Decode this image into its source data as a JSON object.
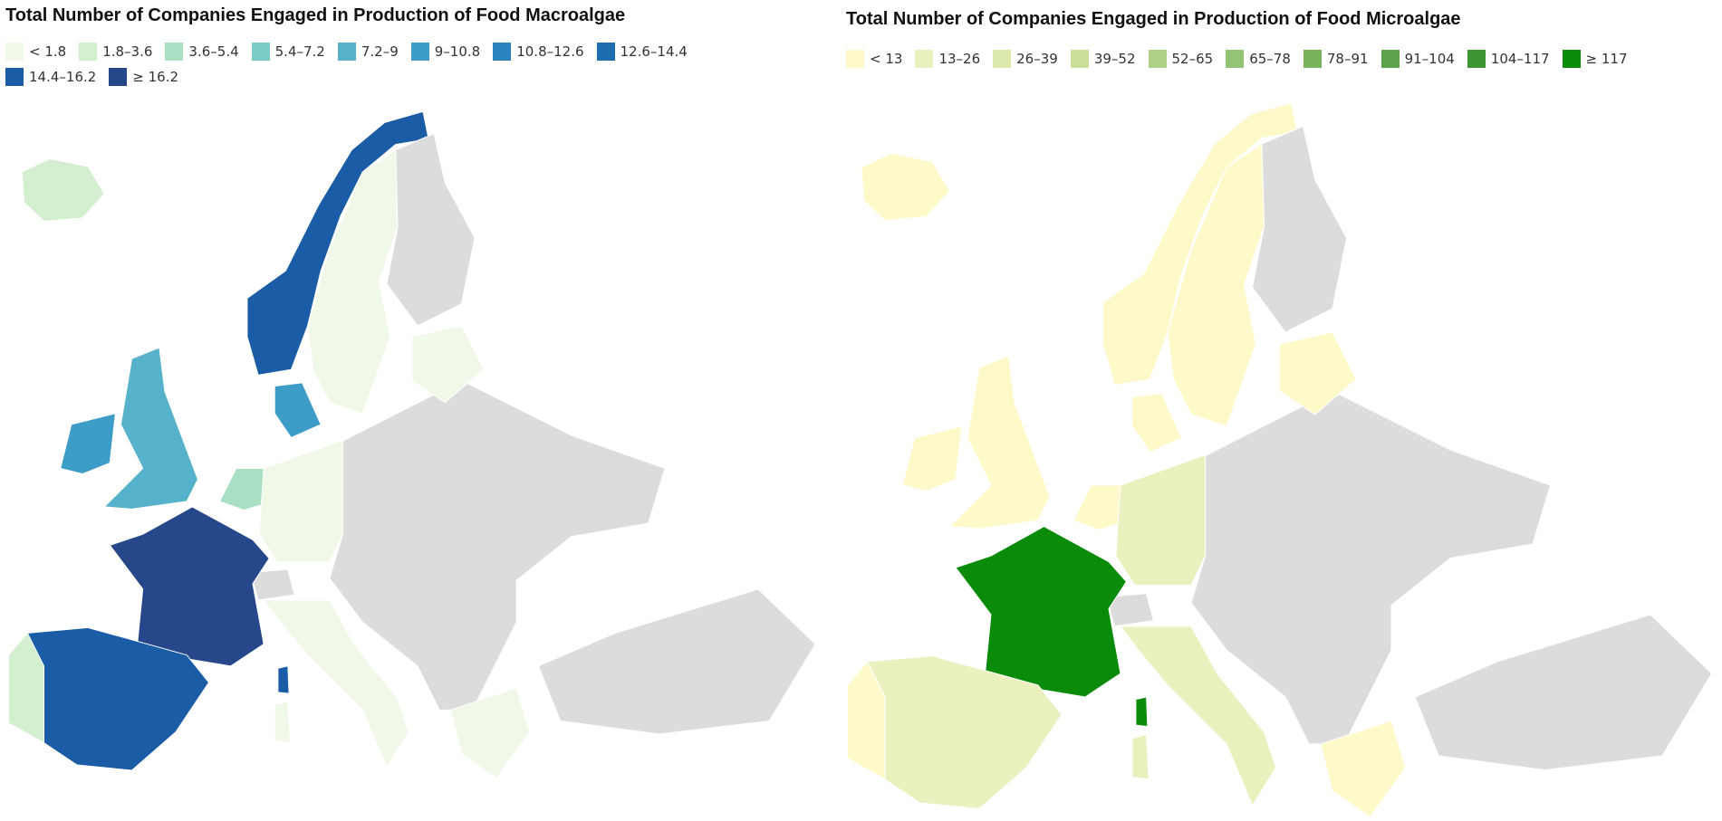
{
  "maps": [
    {
      "title": "Total Number of Companies Engaged in Production of Food Macroalgae",
      "legend": [
        {
          "label": "< 1.8",
          "color": "#f0f8e8"
        },
        {
          "label": "1.8–3.6",
          "color": "#d4eed0"
        },
        {
          "label": "3.6–5.4",
          "color": "#a9dfc3"
        },
        {
          "label": "5.4–7.2",
          "color": "#79cbc7"
        },
        {
          "label": "7.2–9",
          "color": "#55b2ca"
        },
        {
          "label": "9–10.8",
          "color": "#3d9cc8"
        },
        {
          "label": "10.8–12.6",
          "color": "#2b84c0"
        },
        {
          "label": "12.6–14.4",
          "color": "#1c6cb0"
        },
        {
          "label": "14.4–16.2",
          "color": "#1a5ca6"
        },
        {
          "label": "≥ 16.2",
          "color": "#26478a"
        }
      ]
    },
    {
      "title": "Total Number of Companies Engaged in Production of Food Microalgae",
      "legend": [
        {
          "label": "< 13",
          "color": "#fdf9c8"
        },
        {
          "label": "13–26",
          "color": "#eaf0be"
        },
        {
          "label": "26–39",
          "color": "#dbe9ac"
        },
        {
          "label": "39–52",
          "color": "#c9df9a"
        },
        {
          "label": "52–65",
          "color": "#aed185"
        },
        {
          "label": "65–78",
          "color": "#93c476"
        },
        {
          "label": "78–91",
          "color": "#77b25c"
        },
        {
          "label": "91–104",
          "color": "#5ea34c"
        },
        {
          "label": "104–117",
          "color": "#3e9533"
        },
        {
          "label": "≥ 117",
          "color": "#0a8c0a"
        }
      ]
    }
  ]
}
